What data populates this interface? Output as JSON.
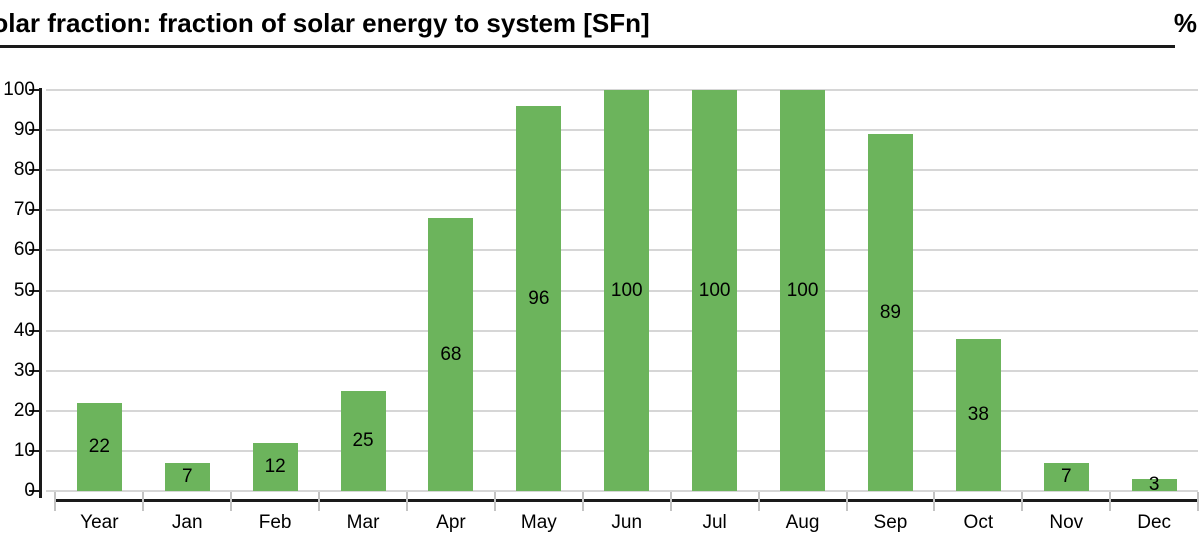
{
  "header": {
    "title": "Solar fraction: fraction of solar energy to system [SFn]",
    "unit_label": "%"
  },
  "chart_data": {
    "type": "bar",
    "title": "Solar fraction: fraction of solar energy to system [SFn]",
    "unit": "%",
    "categories": [
      "Year",
      "Jan",
      "Feb",
      "Mar",
      "Apr",
      "May",
      "Jun",
      "Jul",
      "Aug",
      "Sep",
      "Oct",
      "Nov",
      "Dec"
    ],
    "values": [
      22,
      7,
      12,
      25,
      68,
      96,
      100,
      100,
      100,
      89,
      38,
      7,
      3
    ],
    "xlabel": "",
    "ylabel": "",
    "ylim": [
      0,
      100
    ],
    "yticks": [
      0,
      10,
      20,
      30,
      40,
      50,
      60,
      70,
      80,
      90,
      100
    ],
    "grid": true,
    "legend": "none",
    "value_label_position": "inside-center",
    "colors": {
      "bar": "#6CB45C",
      "gridline": "#d6d6d6",
      "axis": "#1a1a1a",
      "boundary_tick": "#c3c3c3",
      "text": "#000000"
    }
  }
}
